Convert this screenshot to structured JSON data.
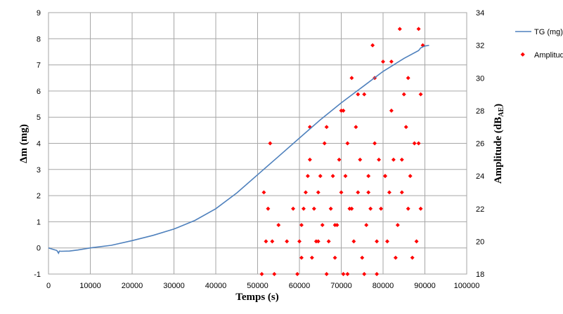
{
  "chart_data": {
    "type": "line+scatter",
    "xlabel": "Temps (s)",
    "ylabel_left": "Δm (mg)",
    "ylabel_right_main": "Amplitude (dB",
    "ylabel_right_sub": "AE",
    "ylabel_right_close": ")",
    "xlim": [
      0,
      100000
    ],
    "ylim_left": [
      -1,
      9
    ],
    "ylim_right": [
      18,
      34
    ],
    "x_ticks": [
      0,
      10000,
      20000,
      30000,
      40000,
      50000,
      60000,
      70000,
      80000,
      90000,
      100000
    ],
    "y_ticks_left": [
      -1,
      0,
      1,
      2,
      3,
      4,
      5,
      6,
      7,
      8,
      9
    ],
    "y_ticks_right": [
      18,
      20,
      22,
      24,
      26,
      28,
      30,
      32,
      34
    ],
    "grid": true,
    "legend_position": "right",
    "colors": {
      "tg": "#4f81bd",
      "amplitude": "#ff0000",
      "grid": "#a6a6a6"
    },
    "series": [
      {
        "name": "TG (mg)",
        "kind": "line",
        "axis": "left",
        "x": [
          0,
          1000,
          2000,
          2400,
          2600,
          3000,
          5000,
          7000,
          10000,
          15000,
          20000,
          25000,
          30000,
          35000,
          40000,
          45000,
          50000,
          55000,
          60000,
          65000,
          70000,
          75000,
          80000,
          85000,
          88500,
          89000,
          90000,
          91000
        ],
        "y": [
          0.0,
          -0.05,
          -0.1,
          -0.2,
          -0.12,
          -0.13,
          -0.12,
          -0.08,
          0.0,
          0.1,
          0.28,
          0.48,
          0.72,
          1.05,
          1.5,
          2.1,
          2.8,
          3.5,
          4.2,
          4.9,
          5.55,
          6.15,
          6.75,
          7.25,
          7.55,
          7.65,
          7.72,
          7.75
        ]
      },
      {
        "name": "Amplitude (dB)",
        "kind": "scatter",
        "axis": "right",
        "points": [
          [
            51000,
            18
          ],
          [
            51500,
            23
          ],
          [
            52000,
            20
          ],
          [
            52500,
            22
          ],
          [
            53000,
            26
          ],
          [
            53500,
            20
          ],
          [
            54000,
            18
          ],
          [
            55000,
            21
          ],
          [
            57000,
            20
          ],
          [
            58500,
            22
          ],
          [
            59500,
            18
          ],
          [
            60000,
            20
          ],
          [
            60500,
            21
          ],
          [
            61000,
            22
          ],
          [
            61500,
            23
          ],
          [
            62000,
            24
          ],
          [
            62500,
            25
          ],
          [
            63000,
            19
          ],
          [
            63500,
            22
          ],
          [
            64000,
            20
          ],
          [
            64500,
            23
          ],
          [
            65000,
            24
          ],
          [
            65500,
            21
          ],
          [
            66000,
            26
          ],
          [
            66500,
            27
          ],
          [
            67000,
            20
          ],
          [
            67500,
            22
          ],
          [
            68000,
            24
          ],
          [
            68500,
            19
          ],
          [
            69000,
            21
          ],
          [
            69500,
            25
          ],
          [
            70000,
            23
          ],
          [
            70500,
            28
          ],
          [
            71000,
            24
          ],
          [
            71500,
            26
          ],
          [
            72000,
            22
          ],
          [
            72500,
            30
          ],
          [
            73000,
            20
          ],
          [
            73500,
            27
          ],
          [
            74000,
            23
          ],
          [
            74500,
            25
          ],
          [
            75000,
            19
          ],
          [
            75500,
            29
          ],
          [
            76000,
            21
          ],
          [
            76500,
            24
          ],
          [
            77000,
            22
          ],
          [
            77500,
            32
          ],
          [
            78000,
            26
          ],
          [
            78500,
            20
          ],
          [
            79000,
            25
          ],
          [
            79500,
            22
          ],
          [
            80000,
            31
          ],
          [
            80500,
            24
          ],
          [
            81000,
            20
          ],
          [
            81500,
            23
          ],
          [
            82000,
            28
          ],
          [
            82500,
            25
          ],
          [
            83000,
            19
          ],
          [
            83500,
            21
          ],
          [
            84000,
            33
          ],
          [
            84500,
            23
          ],
          [
            85000,
            29
          ],
          [
            85500,
            27
          ],
          [
            86000,
            22
          ],
          [
            86500,
            24
          ],
          [
            87000,
            19
          ],
          [
            87500,
            26
          ],
          [
            88000,
            20
          ],
          [
            88500,
            33
          ],
          [
            89000,
            22
          ],
          [
            89500,
            32
          ],
          [
            66500,
            18
          ],
          [
            70500,
            18
          ],
          [
            71500,
            18
          ],
          [
            75500,
            18
          ],
          [
            78500,
            18
          ],
          [
            60500,
            19
          ],
          [
            64500,
            20
          ],
          [
            68500,
            21
          ],
          [
            72500,
            22
          ],
          [
            76500,
            23
          ],
          [
            80500,
            24
          ],
          [
            84500,
            25
          ],
          [
            88500,
            26
          ],
          [
            62500,
            27
          ],
          [
            70000,
            28
          ],
          [
            74000,
            29
          ],
          [
            78000,
            30
          ],
          [
            82000,
            31
          ],
          [
            86000,
            30
          ],
          [
            89000,
            29
          ]
        ]
      }
    ]
  }
}
